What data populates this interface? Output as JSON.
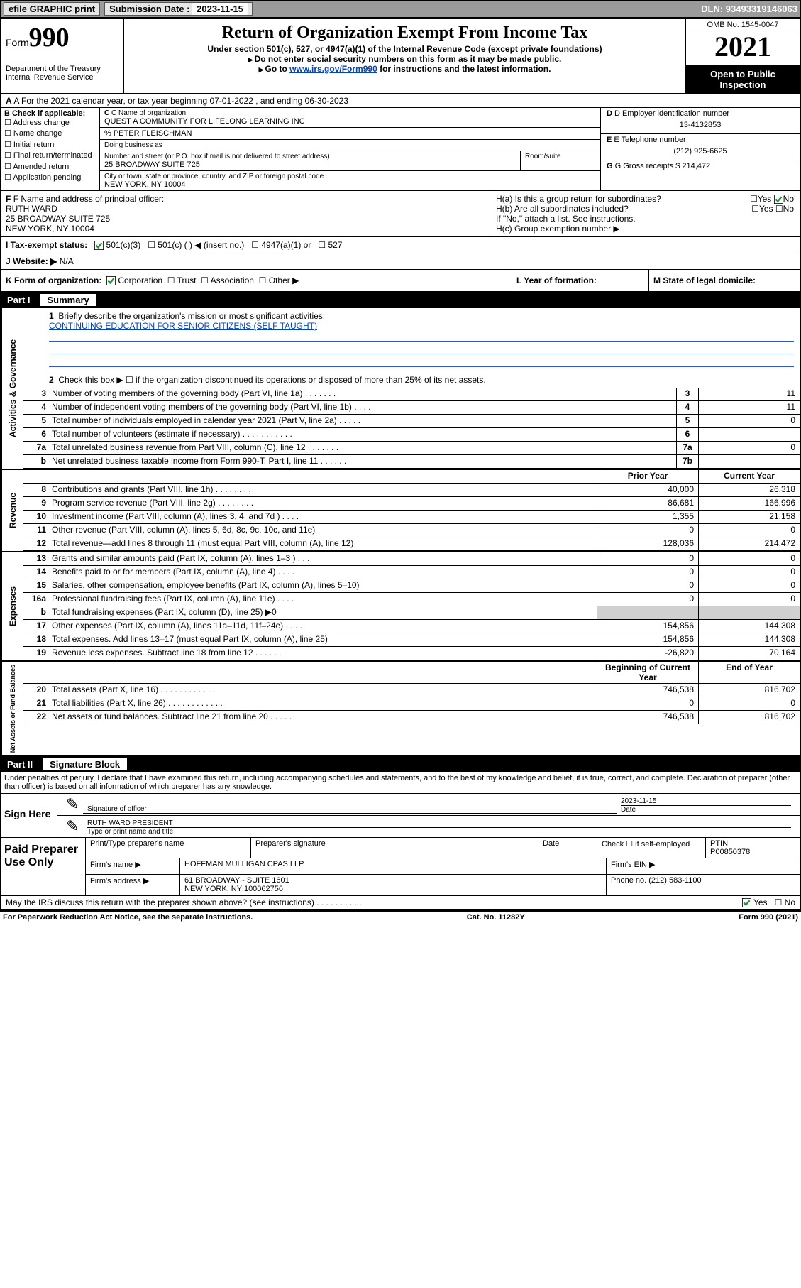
{
  "topbar": {
    "efile": "efile GRAPHIC print",
    "sub_label": "Submission Date :",
    "sub_date": "2023-11-15",
    "dln": "DLN: 93493319146063"
  },
  "header": {
    "form_prefix": "Form",
    "form_num": "990",
    "dept": "Department of the Treasury\nInternal Revenue Service",
    "title": "Return of Organization Exempt From Income Tax",
    "sub1": "Under section 501(c), 527, or 4947(a)(1) of the Internal Revenue Code (except private foundations)",
    "sub2": "Do not enter social security numbers on this form as it may be made public.",
    "sub3_prefix": "Go to ",
    "sub3_link": "www.irs.gov/Form990",
    "sub3_suffix": " for instructions and the latest information.",
    "omb": "OMB No. 1545-0047",
    "year": "2021",
    "open": "Open to Public Inspection"
  },
  "row_a": {
    "text": "A For the 2021 calendar year, or tax year beginning 07-01-2022    , and ending 06-30-2023"
  },
  "section_b": {
    "label": "B Check if applicable:",
    "opts": [
      "Address change",
      "Name change",
      "Initial return",
      "Final return/terminated",
      "Amended return",
      "Application pending"
    ],
    "c_label": "C Name of organization",
    "c_name": "QUEST A COMMUNITY FOR LIFELONG LEARNING INC",
    "care_of": "% PETER FLEISCHMAN",
    "dba": "Doing business as",
    "addr_label": "Number and street (or P.O. box if mail is not delivered to street address)",
    "addr": "25 BROADWAY SUITE 725",
    "room_label": "Room/suite",
    "city_label": "City or town, state or province, country, and ZIP or foreign postal code",
    "city": "NEW YORK, NY  10004",
    "d_label": "D Employer identification number",
    "d_val": "13-4132853",
    "e_label": "E Telephone number",
    "e_val": "(212) 925-6625",
    "g_label": "G Gross receipts $",
    "g_val": "214,472"
  },
  "section_fh": {
    "f_label": "F Name and address of principal officer:",
    "f_name": "RUTH WARD",
    "f_addr1": "25 BROADWAY SUITE 725",
    "f_addr2": "NEW YORK, NY  10004",
    "ha": "H(a)  Is this a group return for subordinates?",
    "hb": "H(b)  Are all subordinates included?",
    "hb_note": "If \"No,\" attach a list. See instructions.",
    "hc": "H(c)  Group exemption number ▶",
    "yes": "Yes",
    "no": "No"
  },
  "row_i": {
    "label": "I   Tax-exempt status:",
    "o1": "501(c)(3)",
    "o2": "501(c) (  ) ◀ (insert no.)",
    "o3": "4947(a)(1) or",
    "o4": "527"
  },
  "row_j": {
    "label": "J   Website: ▶",
    "val": "N/A"
  },
  "row_k": {
    "label": "K Form of organization:",
    "o1": "Corporation",
    "o2": "Trust",
    "o3": "Association",
    "o4": "Other ▶"
  },
  "row_l": {
    "label": "L Year of formation:"
  },
  "row_m": {
    "label": "M State of legal domicile:"
  },
  "part1": {
    "header_part": "Part I",
    "header_title": "Summary",
    "line1_label": "Briefly describe the organization's mission or most significant activities:",
    "line1_val": "CONTINUING EDUCATION FOR SENIOR CITIZENS (SELF TAUGHT)",
    "line2": "Check this box ▶ ☐  if the organization discontinued its operations or disposed of more than 25% of its net assets.",
    "vtab_ag": "Activities & Governance",
    "vtab_rev": "Revenue",
    "vtab_exp": "Expenses",
    "vtab_na": "Net Assets or Fund Balances",
    "col_prior": "Prior Year",
    "col_current": "Current Year",
    "col_begin": "Beginning of Current Year",
    "col_end": "End of Year",
    "rows_gov": [
      {
        "n": "3",
        "d": "Number of voting members of the governing body (Part VI, line 1a)   .    .    .    .    .    .    .",
        "box": "3",
        "v": "11"
      },
      {
        "n": "4",
        "d": "Number of independent voting members of the governing body (Part VI, line 1b)  .    .    .    .",
        "box": "4",
        "v": "11"
      },
      {
        "n": "5",
        "d": "Total number of individuals employed in calendar year 2021 (Part V, line 2a)  .    .    .    .    .",
        "box": "5",
        "v": "0"
      },
      {
        "n": "6",
        "d": "Total number of volunteers (estimate if necessary)   .    .    .    .    .    .    .    .    .    .    .",
        "box": "6",
        "v": ""
      },
      {
        "n": "7a",
        "d": "Total unrelated business revenue from Part VIII, column (C), line 12  .    .    .    .    .    .    .",
        "box": "7a",
        "v": "0"
      },
      {
        "n": "b",
        "d": "Net unrelated business taxable income from Form 990-T, Part I, line 11  .    .    .    .    .    .",
        "box": "7b",
        "v": ""
      }
    ],
    "rows_rev": [
      {
        "n": "8",
        "d": "Contributions and grants (Part VIII, line 1h)   .    .    .    .    .    .    .    .",
        "p": "40,000",
        "c": "26,318"
      },
      {
        "n": "9",
        "d": "Program service revenue (Part VIII, line 2g)   .    .    .    .    .    .    .    .",
        "p": "86,681",
        "c": "166,996"
      },
      {
        "n": "10",
        "d": "Investment income (Part VIII, column (A), lines 3, 4, and 7d )   .    .    .    .",
        "p": "1,355",
        "c": "21,158"
      },
      {
        "n": "11",
        "d": "Other revenue (Part VIII, column (A), lines 5, 6d, 8c, 9c, 10c, and 11e)",
        "p": "0",
        "c": "0"
      },
      {
        "n": "12",
        "d": "Total revenue—add lines 8 through 11 (must equal Part VIII, column (A), line 12)",
        "p": "128,036",
        "c": "214,472"
      }
    ],
    "rows_exp": [
      {
        "n": "13",
        "d": "Grants and similar amounts paid (Part IX, column (A), lines 1–3 )   .    .    .",
        "p": "0",
        "c": "0"
      },
      {
        "n": "14",
        "d": "Benefits paid to or for members (Part IX, column (A), line 4)   .    .    .    .",
        "p": "0",
        "c": "0"
      },
      {
        "n": "15",
        "d": "Salaries, other compensation, employee benefits (Part IX, column (A), lines 5–10)",
        "p": "0",
        "c": "0"
      },
      {
        "n": "16a",
        "d": "Professional fundraising fees (Part IX, column (A), line 11e)   .    .    .    .",
        "p": "0",
        "c": "0"
      },
      {
        "n": "b",
        "d": "Total fundraising expenses (Part IX, column (D), line 25) ▶0",
        "p": "shaded",
        "c": "shaded"
      },
      {
        "n": "17",
        "d": "Other expenses (Part IX, column (A), lines 11a–11d, 11f–24e)  .    .    .    .",
        "p": "154,856",
        "c": "144,308"
      },
      {
        "n": "18",
        "d": "Total expenses. Add lines 13–17 (must equal Part IX, column (A), line 25)",
        "p": "154,856",
        "c": "144,308"
      },
      {
        "n": "19",
        "d": "Revenue less expenses. Subtract line 18 from line 12  .    .    .    .    .    .",
        "p": "-26,820",
        "c": "70,164"
      }
    ],
    "rows_na": [
      {
        "n": "20",
        "d": "Total assets (Part X, line 16)   .    .    .    .    .    .    .    .    .    .    .    .",
        "p": "746,538",
        "c": "816,702"
      },
      {
        "n": "21",
        "d": "Total liabilities (Part X, line 26)  .    .    .    .    .    .    .    .    .    .    .    .",
        "p": "0",
        "c": "0"
      },
      {
        "n": "22",
        "d": "Net assets or fund balances. Subtract line 21 from line 20  .    .    .    .    .",
        "p": "746,538",
        "c": "816,702"
      }
    ]
  },
  "part2": {
    "header_part": "Part II",
    "header_title": "Signature Block",
    "declaration": "Under penalties of perjury, I declare that I have examined this return, including accompanying schedules and statements, and to the best of my knowledge and belief, it is true, correct, and complete. Declaration of preparer (other than officer) is based on all information of which preparer has any knowledge.",
    "sign_here": "Sign Here",
    "sig_officer": "Signature of officer",
    "sig_date_label": "Date",
    "sig_date": "2023-11-15",
    "sig_name": "RUTH WARD  PRESIDENT",
    "sig_name_label": "Type or print name and title",
    "paid": "Paid Preparer Use Only",
    "p_name_label": "Print/Type preparer's name",
    "p_sig_label": "Preparer's signature",
    "p_date_label": "Date",
    "p_check": "Check ☐ if self-employed",
    "p_ptin_label": "PTIN",
    "p_ptin": "P00850378",
    "firm_name_label": "Firm's name    ▶",
    "firm_name": "HOFFMAN MULLIGAN CPAS LLP",
    "firm_ein_label": "Firm's EIN ▶",
    "firm_addr_label": "Firm's address ▶",
    "firm_addr1": "61 BROADWAY - SUITE 1601",
    "firm_addr2": "NEW YORK, NY  100062756",
    "firm_phone_label": "Phone no.",
    "firm_phone": "(212) 583-1100",
    "may_irs": "May the IRS discuss this return with the preparer shown above? (see instructions)   .    .    .    .    .    .    .    .    .    .",
    "may_yes": "Yes",
    "may_no": "No"
  },
  "footer": {
    "left": "For Paperwork Reduction Act Notice, see the separate instructions.",
    "mid": "Cat. No. 11282Y",
    "right": "Form 990 (2021)"
  },
  "colors": {
    "link": "#0645ad",
    "topbar_bg": "#9b9b9b",
    "shaded": "#d0d0d0",
    "check_green": "#2e8b3d"
  }
}
